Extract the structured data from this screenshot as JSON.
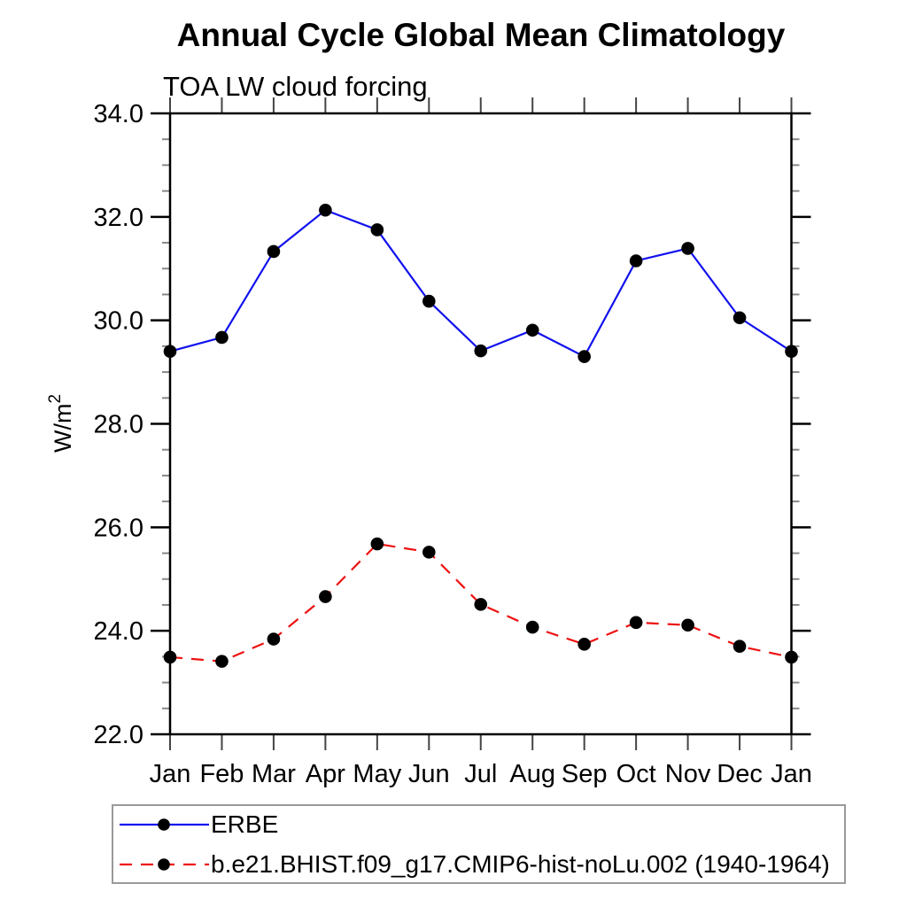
{
  "chart_data": {
    "type": "line",
    "title": "Annual Cycle Global Mean Climatology",
    "subtitle": "TOA LW cloud forcing",
    "ylabel": "W/m²",
    "ylabel_base": "W/m",
    "ylabel_sup": "2",
    "categories": [
      "Jan",
      "Feb",
      "Mar",
      "Apr",
      "May",
      "Jun",
      "Jul",
      "Aug",
      "Sep",
      "Oct",
      "Nov",
      "Dec",
      "Jan"
    ],
    "ylim": [
      22.0,
      34.0
    ],
    "ytick_major_step": 2.0,
    "ytick_minor_step": 0.5,
    "ytick_labels": [
      "22.0",
      "24.0",
      "26.0",
      "28.0",
      "30.0",
      "32.0",
      "34.0"
    ],
    "grid": false,
    "legend_position": "bottom-left",
    "marker_color": "#000000",
    "series": [
      {
        "name": "ERBE",
        "color": "#1111ee",
        "style": "solid",
        "marker": "circle",
        "values": [
          29.4,
          29.67,
          31.33,
          32.13,
          31.75,
          30.37,
          29.41,
          29.81,
          29.3,
          31.15,
          31.39,
          30.05,
          29.4
        ]
      },
      {
        "name": "b.e21.BHIST.f09_g17.CMIP6-hist-noLu.002 (1940-1964)",
        "color": "#ee1111",
        "style": "dashed",
        "marker": "circle",
        "values": [
          23.49,
          23.41,
          23.84,
          24.66,
          25.68,
          25.52,
          24.51,
          24.07,
          23.74,
          24.16,
          24.11,
          23.7,
          23.49
        ]
      }
    ]
  }
}
